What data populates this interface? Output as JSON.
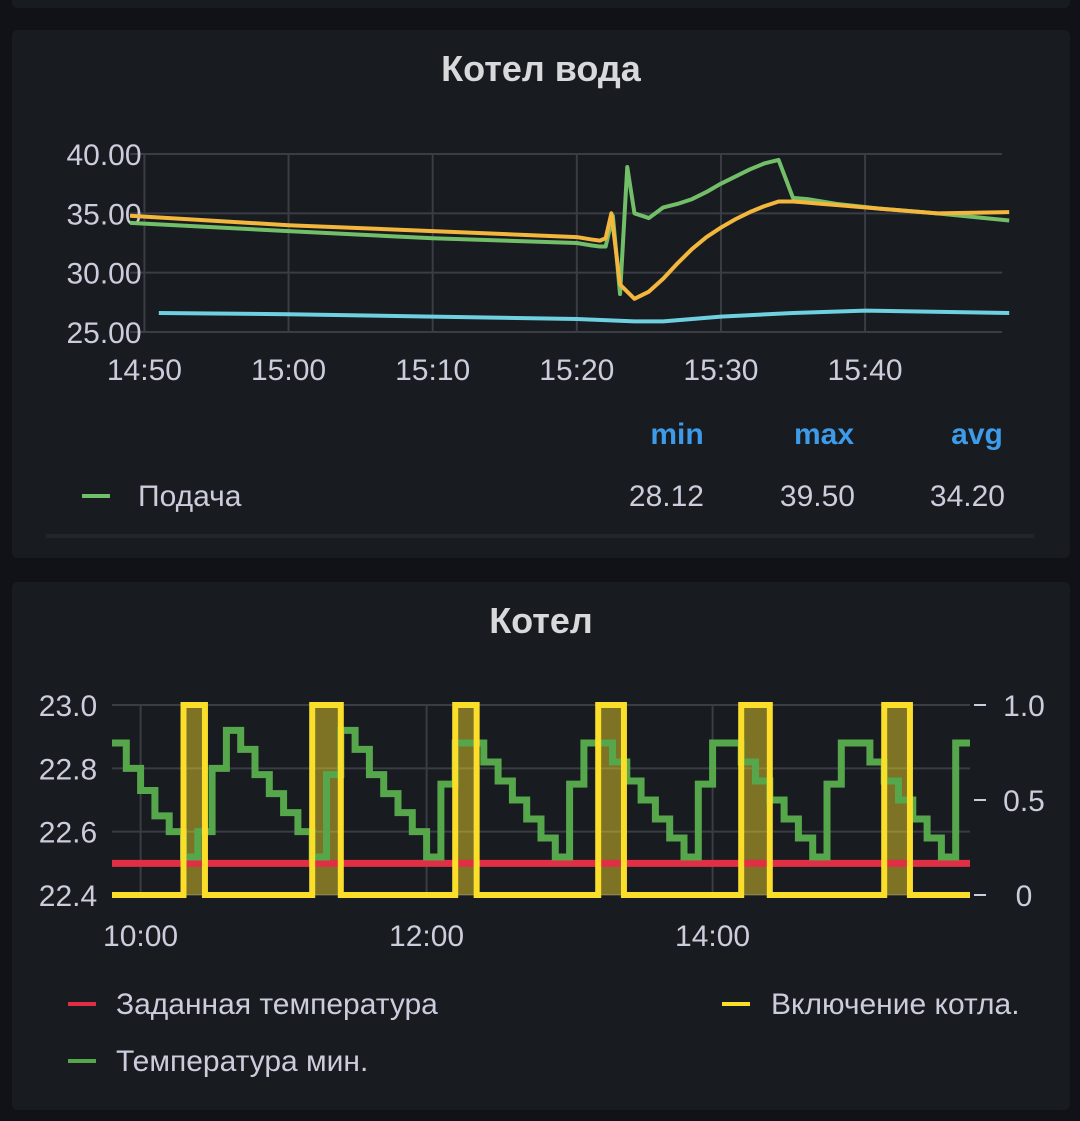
{
  "chart_data": [
    {
      "type": "line",
      "title": "Котел вода",
      "x_labels": [
        "14:50",
        "15:00",
        "15:10",
        "15:20",
        "15:30",
        "15:40"
      ],
      "y_labels": [
        "40.00",
        "35.00",
        "30.00",
        "25.00"
      ],
      "ylim": [
        25,
        40
      ],
      "grid": true,
      "x_unit": "minutes since 14:50",
      "series": [
        {
          "name": "Подача",
          "color": "#73bf69",
          "x": [
            -1,
            10,
            20,
            30,
            31,
            31.6,
            32,
            32.5,
            33,
            33.5,
            34,
            35,
            36,
            37,
            38,
            39,
            40,
            41,
            42,
            43,
            44,
            45,
            46,
            47,
            48,
            51,
            55,
            60
          ],
          "values": [
            34.2,
            33.5,
            32.9,
            32.5,
            32.3,
            32.2,
            32.2,
            34.8,
            28.2,
            38.9,
            35.0,
            34.6,
            35.5,
            35.8,
            36.2,
            36.8,
            37.5,
            38.1,
            38.7,
            39.2,
            39.5,
            36.3,
            36.2,
            36.0,
            35.8,
            35.4,
            35.0,
            34.4
          ]
        },
        {
          "name": "",
          "color": "#f2b73c",
          "x": [
            -1,
            10,
            20,
            30,
            31,
            31.6,
            32,
            32.4,
            33,
            34,
            35,
            36,
            37,
            38,
            39,
            40,
            41,
            42,
            43,
            44,
            45,
            46,
            47,
            48,
            51,
            55,
            60
          ],
          "values": [
            34.8,
            34.0,
            33.5,
            33.0,
            32.8,
            32.7,
            32.9,
            35.0,
            29.0,
            27.8,
            28.4,
            29.5,
            30.8,
            32.0,
            33.0,
            33.8,
            34.5,
            35.1,
            35.6,
            36.0,
            36.0,
            35.9,
            35.8,
            35.7,
            35.4,
            35.0,
            35.1
          ]
        },
        {
          "name": "",
          "color": "#6ed0e0",
          "x": [
            1,
            10,
            20,
            30,
            34,
            36,
            40,
            45,
            50,
            60
          ],
          "values": [
            26.6,
            26.5,
            26.3,
            26.1,
            25.9,
            25.9,
            26.3,
            26.6,
            26.8,
            26.6
          ]
        }
      ],
      "legend": {
        "headers": [
          "min",
          "max",
          "avg"
        ],
        "rows": [
          {
            "name": "Подача",
            "color": "#73bf69",
            "min": "28.12",
            "max": "39.50",
            "avg": "34.20"
          }
        ]
      }
    },
    {
      "type": "line",
      "title": "Котел",
      "x_labels": [
        "10:00",
        "12:00",
        "14:00"
      ],
      "y_labels_left": [
        "23.0",
        "22.8",
        "22.6",
        "22.4"
      ],
      "y_labels_right": [
        "1.0",
        "0.5",
        "0"
      ],
      "ylim_left": [
        22.4,
        23.0
      ],
      "ylim_right": [
        0,
        1
      ],
      "grid": true,
      "x_unit": "hours since 10:00",
      "series": [
        {
          "name": "Заданная температура",
          "color": "#e02f44",
          "axis": "left",
          "x": [
            -0.2,
            5.8
          ],
          "values": [
            22.5,
            22.5
          ]
        },
        {
          "name": "Температура мин.",
          "color": "#56a64b",
          "axis": "left",
          "type": "step",
          "x": [
            -0.2,
            -0.1,
            0.0,
            0.1,
            0.2,
            0.3,
            0.4,
            0.5,
            0.6,
            0.7,
            0.8,
            0.9,
            1.0,
            1.1,
            1.2,
            1.3,
            1.4,
            1.5,
            1.6,
            1.7,
            1.8,
            1.9,
            2.0,
            2.1,
            2.2,
            2.3,
            2.4,
            2.5,
            2.6,
            2.7,
            2.8,
            2.9,
            3.0,
            3.1,
            3.2,
            3.3,
            3.4,
            3.5,
            3.6,
            3.7,
            3.8,
            3.9,
            4.0,
            4.1,
            4.2,
            4.3,
            4.4,
            4.5,
            4.6,
            4.7,
            4.8,
            4.9,
            5.0,
            5.1,
            5.2,
            5.3,
            5.4,
            5.5,
            5.6,
            5.7,
            5.8
          ],
          "values": [
            22.88,
            22.8,
            22.73,
            22.65,
            22.6,
            22.52,
            22.6,
            22.8,
            22.92,
            22.86,
            22.78,
            22.72,
            22.66,
            22.6,
            22.52,
            22.78,
            22.92,
            22.86,
            22.78,
            22.72,
            22.66,
            22.6,
            22.52,
            22.75,
            22.88,
            22.88,
            22.82,
            22.76,
            22.7,
            22.64,
            22.58,
            22.52,
            22.75,
            22.88,
            22.88,
            22.82,
            22.76,
            22.7,
            22.64,
            22.58,
            22.52,
            22.75,
            22.88,
            22.88,
            22.82,
            22.76,
            22.7,
            22.64,
            22.58,
            22.52,
            22.75,
            22.88,
            22.88,
            22.82,
            22.76,
            22.7,
            22.64,
            22.58,
            22.52,
            22.88,
            22.88
          ]
        },
        {
          "name": "Включение котла.",
          "color": "#fade2a",
          "axis": "right",
          "type": "step",
          "x": [
            -0.2,
            0.3,
            0.45,
            1.2,
            1.4,
            2.2,
            2.35,
            3.2,
            3.38,
            4.2,
            4.4,
            5.2,
            5.38,
            5.8
          ],
          "values": [
            0,
            1,
            0,
            1,
            0,
            1,
            0,
            1,
            0,
            1,
            0,
            1,
            0,
            0
          ]
        }
      ],
      "legend": {
        "left": [
          {
            "name": "Заданная температура",
            "color": "#e02f44"
          },
          {
            "name": "Температура мин.",
            "color": "#56a64b"
          }
        ],
        "right": [
          {
            "name": "Включение котла.",
            "color": "#fade2a"
          }
        ]
      }
    }
  ]
}
